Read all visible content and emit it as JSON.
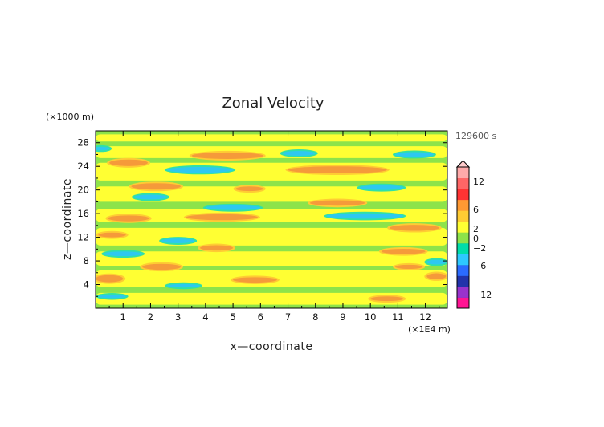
{
  "chart_data": {
    "type": "heatmap",
    "title": "Zonal Velocity",
    "xlabel": "x—coordinate",
    "ylabel": "z—coordinate",
    "x_unit": "(×1E4 m)",
    "y_unit": "(×1000 m)",
    "time_label": "129600 s",
    "xlim": [
      0,
      12.8
    ],
    "ylim": [
      0,
      30
    ],
    "x_ticks": [
      "1",
      "2",
      "3",
      "4",
      "5",
      "6",
      "7",
      "8",
      "9",
      "10",
      "11",
      "12"
    ],
    "y_ticks": [
      "4",
      "8",
      "12",
      "16",
      "20",
      "24",
      "28"
    ],
    "colorbar": {
      "tick_labels": [
        "12",
        "6",
        "2",
        "0",
        "−2",
        "−6",
        "−12"
      ],
      "colors": [
        "#ff1493",
        "#9933cc",
        "#2233aa",
        "#2b6bff",
        "#2ec8ff",
        "#00ddaa",
        "#8de34a",
        "#ffff33",
        "#ffcc33",
        "#ff9933",
        "#ff3333",
        "#ff6666",
        "#ffaaaa"
      ]
    },
    "field": {
      "background": "#8de34a",
      "bands_yellow": [
        {
          "x0": 0,
          "x1": 12.8,
          "z0": 0.6,
          "z1": 2.6
        },
        {
          "x0": 0,
          "x1": 12.8,
          "z0": 3.6,
          "z1": 6.4
        },
        {
          "x0": 0,
          "x1": 12.8,
          "z0": 7.2,
          "z1": 9.6
        },
        {
          "x0": 0,
          "x1": 12.8,
          "z0": 10.6,
          "z1": 13.6
        },
        {
          "x0": 0,
          "x1": 12.8,
          "z0": 14.6,
          "z1": 16.8
        },
        {
          "x0": 0,
          "x1": 12.8,
          "z0": 18.0,
          "z1": 20.6
        },
        {
          "x0": 0,
          "x1": 12.8,
          "z0": 21.6,
          "z1": 24.6
        },
        {
          "x0": 0,
          "x1": 12.8,
          "z0": 25.4,
          "z1": 27.4
        },
        {
          "x0": 0,
          "x1": 12.8,
          "z0": 28.2,
          "z1": 29.4
        }
      ],
      "positive_blobs": [
        {
          "x": 0.5,
          "z": 5.0,
          "w": 1.0,
          "h": 1.2
        },
        {
          "x": 2.4,
          "z": 7.0,
          "w": 1.4,
          "h": 1.0
        },
        {
          "x": 4.4,
          "z": 10.2,
          "w": 1.2,
          "h": 0.9
        },
        {
          "x": 1.2,
          "z": 15.2,
          "w": 1.5,
          "h": 1.0
        },
        {
          "x": 4.6,
          "z": 15.4,
          "w": 2.6,
          "h": 1.0
        },
        {
          "x": 2.2,
          "z": 20.6,
          "w": 1.8,
          "h": 1.1
        },
        {
          "x": 5.6,
          "z": 20.2,
          "w": 1.0,
          "h": 0.8
        },
        {
          "x": 1.2,
          "z": 24.6,
          "w": 1.4,
          "h": 1.1
        },
        {
          "x": 4.8,
          "z": 25.8,
          "w": 2.6,
          "h": 1.1
        },
        {
          "x": 8.8,
          "z": 23.4,
          "w": 3.6,
          "h": 1.2
        },
        {
          "x": 8.8,
          "z": 17.8,
          "w": 2.0,
          "h": 0.9
        },
        {
          "x": 11.6,
          "z": 13.6,
          "w": 1.8,
          "h": 1.0
        },
        {
          "x": 11.2,
          "z": 9.6,
          "w": 1.6,
          "h": 0.9
        },
        {
          "x": 5.8,
          "z": 4.8,
          "w": 1.6,
          "h": 0.9
        },
        {
          "x": 12.4,
          "z": 5.4,
          "w": 0.7,
          "h": 1.0
        },
        {
          "x": 11.4,
          "z": 7.0,
          "w": 1.0,
          "h": 0.7
        },
        {
          "x": 0.6,
          "z": 12.4,
          "w": 1.0,
          "h": 0.8
        },
        {
          "x": 10.6,
          "z": 1.6,
          "w": 1.2,
          "h": 0.8
        }
      ],
      "negative_blobs": [
        {
          "x": 3.8,
          "z": 23.4,
          "w": 2.4,
          "h": 1.0
        },
        {
          "x": 2.0,
          "z": 18.8,
          "w": 1.2,
          "h": 0.8
        },
        {
          "x": 5.0,
          "z": 17.0,
          "w": 2.0,
          "h": 0.8
        },
        {
          "x": 9.8,
          "z": 15.6,
          "w": 2.8,
          "h": 0.9
        },
        {
          "x": 7.4,
          "z": 26.2,
          "w": 1.2,
          "h": 0.8
        },
        {
          "x": 11.6,
          "z": 26.0,
          "w": 1.4,
          "h": 0.8
        },
        {
          "x": 10.4,
          "z": 20.4,
          "w": 1.6,
          "h": 0.8
        },
        {
          "x": 3.0,
          "z": 11.4,
          "w": 1.2,
          "h": 0.8
        },
        {
          "x": 1.0,
          "z": 9.2,
          "w": 1.4,
          "h": 0.8
        },
        {
          "x": 12.4,
          "z": 7.8,
          "w": 0.7,
          "h": 0.8
        },
        {
          "x": 3.2,
          "z": 3.8,
          "w": 1.2,
          "h": 0.6
        },
        {
          "x": 0.2,
          "z": 27.0,
          "w": 0.6,
          "h": 0.6
        },
        {
          "x": 0.6,
          "z": 2.0,
          "w": 1.0,
          "h": 0.6
        }
      ]
    }
  }
}
